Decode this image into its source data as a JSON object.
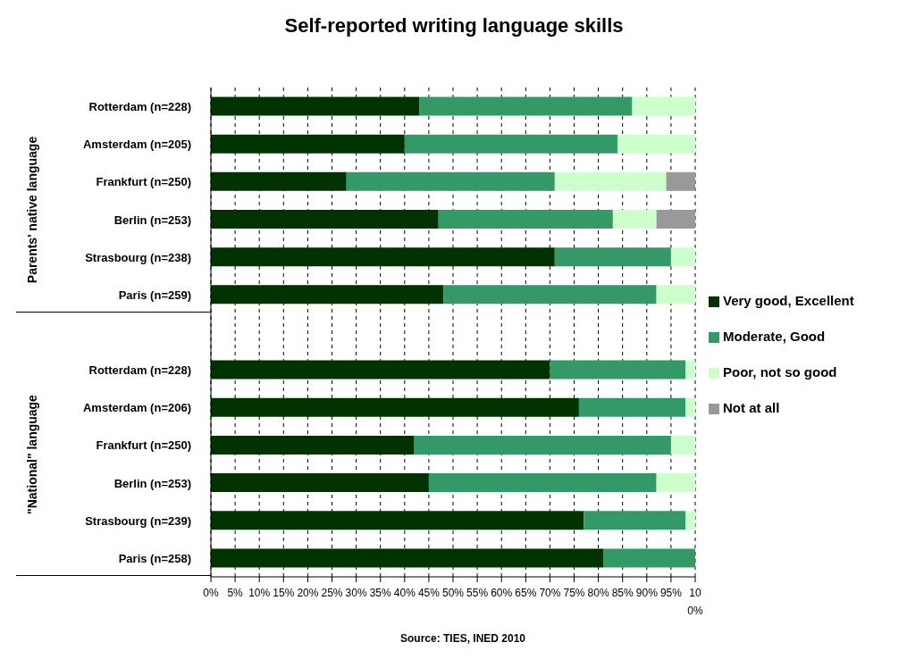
{
  "chart_data": {
    "type": "bar",
    "orientation": "horizontal",
    "stacked": true,
    "title": "Self-reported writing language skills",
    "categories": [
      "Rotterdam (n=228)",
      "Amsterdam (n=205)",
      "Frankfurt (n=250)",
      "Berlin (n=253)",
      "Strasbourg (n=238)",
      "Paris (n=259)",
      null,
      "Rotterdam (n=228)",
      "Amsterdam (n=206)",
      "Frankfurt (n=250)",
      "Berlin (n=253)",
      "Strasbourg (n=239)",
      "Paris (n=258)"
    ],
    "series": [
      {
        "name": "Very good, Excellent",
        "color": "#003300",
        "values": [
          43,
          40,
          28,
          47,
          71,
          48,
          null,
          70,
          76,
          42,
          45,
          77,
          81
        ]
      },
      {
        "name": "Moderate, Good",
        "color": "#339966",
        "values": [
          44,
          44,
          43,
          36,
          24,
          44,
          null,
          28,
          22,
          53,
          47,
          21,
          19
        ]
      },
      {
        "name": "Poor, not so good",
        "color": "#ccffcc",
        "values": [
          13,
          16,
          23,
          9,
          5,
          8,
          null,
          2,
          2,
          5,
          8,
          2,
          null
        ]
      },
      {
        "name": "Not at all",
        "color": "#999999",
        "values": [
          null,
          null,
          6,
          8,
          null,
          null,
          null,
          null,
          null,
          null,
          null,
          null,
          null
        ]
      }
    ],
    "xlim": [
      0,
      100
    ],
    "xticks": [
      {
        "value": 0,
        "label": "0%"
      },
      {
        "value": 5,
        "label": "5%"
      },
      {
        "value": 10,
        "label": "10%"
      },
      {
        "value": 15,
        "label": "15%"
      },
      {
        "value": 20,
        "label": "20%"
      },
      {
        "value": 25,
        "label": "25%"
      },
      {
        "value": 30,
        "label": "30%"
      },
      {
        "value": 35,
        "label": "35%"
      },
      {
        "value": 40,
        "label": "40%"
      },
      {
        "value": 45,
        "label": "45%"
      },
      {
        "value": 50,
        "label": "50%"
      },
      {
        "value": 55,
        "label": "55%"
      },
      {
        "value": 60,
        "label": "60%"
      },
      {
        "value": 65,
        "label": "65%"
      },
      {
        "value": 70,
        "label": "70%"
      },
      {
        "value": 75,
        "label": "75%"
      },
      {
        "value": 80,
        "label": "80%"
      },
      {
        "value": 85,
        "label": "85%"
      },
      {
        "value": 90,
        "label": "90%"
      },
      {
        "value": 95,
        "label": "95%"
      },
      {
        "value": 100,
        "label": "100%"
      }
    ],
    "grid": "x",
    "legend": "right",
    "annotations": [
      "Parents' native language",
      "\"National\" language",
      "Source: TIES, INED 2010"
    ]
  }
}
